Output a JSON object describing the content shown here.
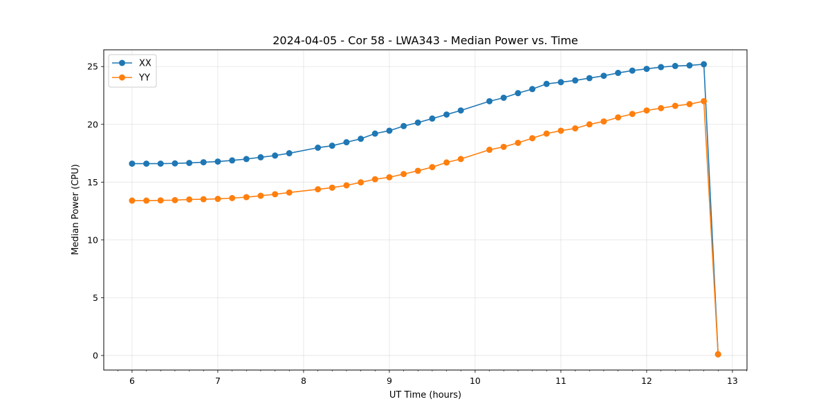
{
  "chart_data": {
    "type": "line",
    "title": "2024-04-05 - Cor 58 - LWA343 - Median Power vs. Time",
    "xlabel": "UT Time (hours)",
    "ylabel": "Median Power (CPU)",
    "xlim": [
      5.67,
      13.17
    ],
    "ylim": [
      -1.26,
      26.45
    ],
    "xticks": [
      6,
      7,
      8,
      9,
      10,
      11,
      12,
      13
    ],
    "yticks": [
      0,
      5,
      10,
      15,
      20,
      25
    ],
    "grid": true,
    "legend_position": "top-left",
    "x": [
      6.0,
      6.167,
      6.333,
      6.5,
      6.667,
      6.833,
      7.0,
      7.167,
      7.333,
      7.5,
      7.667,
      7.833,
      8.167,
      8.333,
      8.5,
      8.667,
      8.833,
      9.0,
      9.167,
      9.333,
      9.5,
      9.667,
      9.833,
      10.167,
      10.333,
      10.5,
      10.667,
      10.833,
      11.0,
      11.167,
      11.333,
      11.5,
      11.667,
      11.833,
      12.0,
      12.167,
      12.333,
      12.5,
      12.667,
      12.833
    ],
    "series": [
      {
        "name": "XX",
        "color": "#1f77b4",
        "values": [
          16.6,
          16.6,
          16.6,
          16.62,
          16.66,
          16.72,
          16.78,
          16.88,
          17.0,
          17.15,
          17.3,
          17.5,
          17.98,
          18.15,
          18.45,
          18.75,
          19.2,
          19.45,
          19.85,
          20.15,
          20.5,
          20.85,
          21.2,
          22.0,
          22.3,
          22.7,
          23.05,
          23.5,
          23.65,
          23.8,
          24.0,
          24.2,
          24.45,
          24.65,
          24.8,
          24.95,
          25.05,
          25.1,
          25.2,
          0.1
        ]
      },
      {
        "name": "YY",
        "color": "#ff7f0e",
        "values": [
          13.4,
          13.4,
          13.42,
          13.44,
          13.5,
          13.52,
          13.55,
          13.62,
          13.7,
          13.82,
          13.95,
          14.1,
          14.38,
          14.52,
          14.72,
          14.98,
          15.25,
          15.42,
          15.7,
          15.98,
          16.3,
          16.7,
          17.0,
          17.8,
          18.05,
          18.4,
          18.8,
          19.2,
          19.45,
          19.65,
          20.0,
          20.25,
          20.6,
          20.9,
          21.2,
          21.4,
          21.6,
          21.75,
          22.0,
          0.1
        ]
      }
    ]
  }
}
